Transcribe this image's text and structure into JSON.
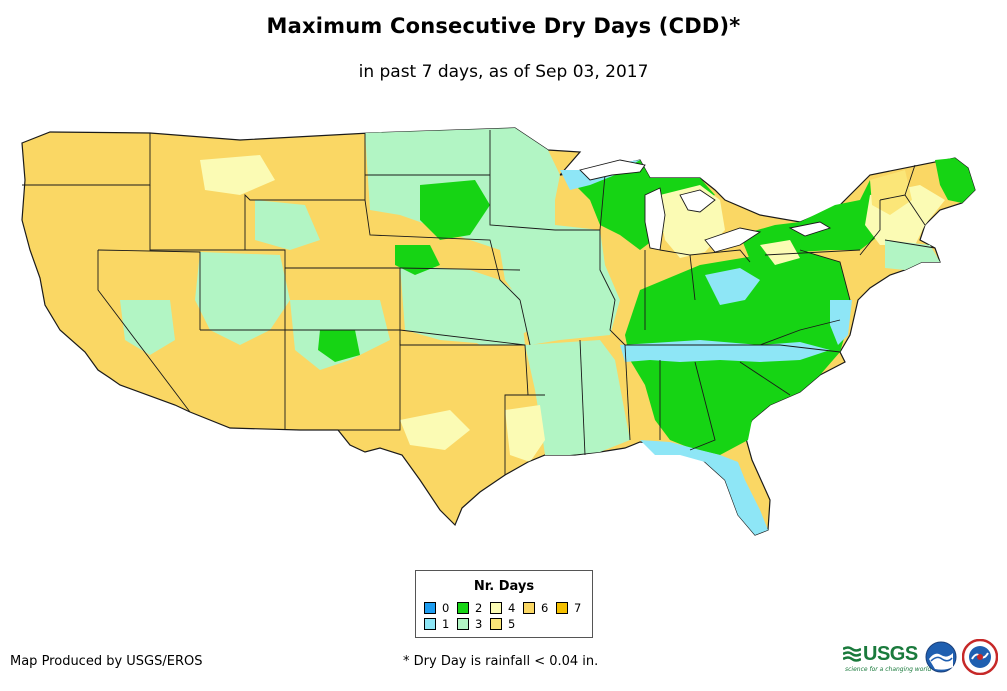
{
  "map": {
    "title": "Maximum Consecutive Dry Days (CDD)*",
    "subtitle": "in past 7 days, as of Sep 03, 2017",
    "region": "Contiguous United States",
    "colors": {
      "0": "#1e9df0",
      "1": "#8ee6f6",
      "2": "#16d414",
      "3": "#b2f5c4",
      "4": "#fbfbb4",
      "5": "#fbe678",
      "6": "#fad764",
      "7": "#f5c000",
      "state_border": "#1a1a1a",
      "water": "#ffffff"
    }
  },
  "legend": {
    "title": "Nr. Days",
    "items": [
      {
        "label": "0",
        "color": "#1e9df0"
      },
      {
        "label": "1",
        "color": "#8ee6f6"
      },
      {
        "label": "2",
        "color": "#16d414"
      },
      {
        "label": "3",
        "color": "#b2f5c4"
      },
      {
        "label": "4",
        "color": "#fbfbb4"
      },
      {
        "label": "5",
        "color": "#fbe678"
      },
      {
        "label": "6",
        "color": "#fad764"
      },
      {
        "label": "7",
        "color": "#f5c000"
      }
    ]
  },
  "footer": {
    "credit": "Map Produced by USGS/EROS",
    "footnote": "* Dry Day is rainfall < 0.04 in.",
    "logos": {
      "usgs": "USGS",
      "usgs_tagline": "science for a changing world",
      "noaa": "noaa-logo",
      "nws": "nws-logo"
    }
  }
}
